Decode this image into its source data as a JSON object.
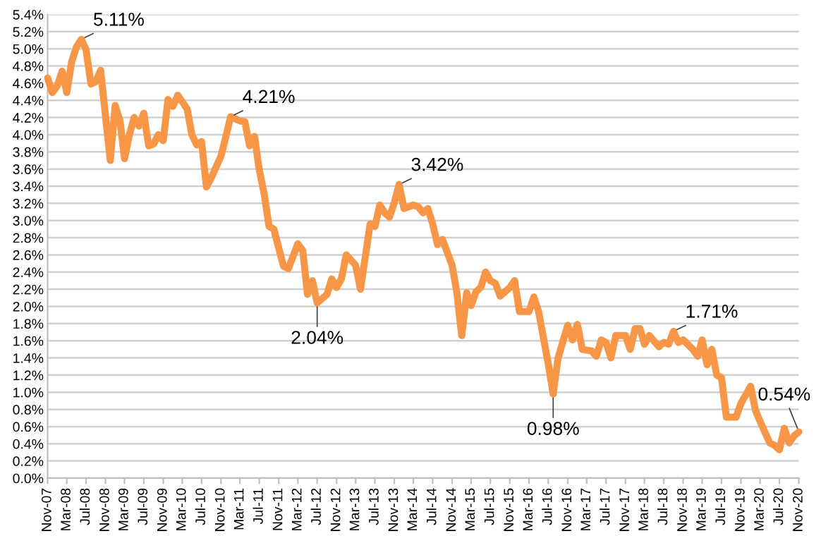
{
  "chart_data": {
    "type": "line",
    "x": [
      "2007-11",
      "2007-12",
      "2008-01",
      "2008-02",
      "2008-03",
      "2008-04",
      "2008-05",
      "2008-06",
      "2008-07",
      "2008-08",
      "2008-09",
      "2008-10",
      "2008-12",
      "2009-01",
      "2009-02",
      "2009-03",
      "2009-04",
      "2009-05",
      "2009-06",
      "2009-07",
      "2009-08",
      "2009-09",
      "2009-10",
      "2009-11",
      "2009-12",
      "2010-01",
      "2010-02",
      "2010-04",
      "2010-05",
      "2010-06",
      "2010-07",
      "2010-08",
      "2010-09",
      "2010-11",
      "2010-12",
      "2011-01",
      "2011-03",
      "2011-04",
      "2011-05",
      "2011-06",
      "2011-07",
      "2011-08",
      "2011-09",
      "2011-10",
      "2011-12",
      "2012-01",
      "2012-03",
      "2012-04",
      "2012-05",
      "2012-06",
      "2012-07",
      "2012-09",
      "2012-10",
      "2012-11",
      "2012-12",
      "2013-01",
      "2013-03",
      "2013-04",
      "2013-06",
      "2013-07",
      "2013-08",
      "2013-09",
      "2013-10",
      "2013-11",
      "2013-12",
      "2014-01",
      "2014-03",
      "2014-04",
      "2014-05",
      "2014-06",
      "2014-07",
      "2014-08",
      "2014-09",
      "2014-11",
      "2014-12",
      "2015-01",
      "2015-02",
      "2015-03",
      "2015-04",
      "2015-05",
      "2015-06",
      "2015-07",
      "2015-08",
      "2015-09",
      "2015-11",
      "2015-12",
      "2016-01",
      "2016-03",
      "2016-04",
      "2016-05",
      "2016-07",
      "2016-08",
      "2016-09",
      "2016-11",
      "2016-12",
      "2017-01",
      "2017-02",
      "2017-04",
      "2017-05",
      "2017-06",
      "2017-07",
      "2017-08",
      "2017-09",
      "2017-11",
      "2017-12",
      "2018-01",
      "2018-02",
      "2018-03",
      "2018-04",
      "2018-06",
      "2018-07",
      "2018-08",
      "2018-09",
      "2018-10",
      "2018-11",
      "2019-01",
      "2019-02",
      "2019-03",
      "2019-04",
      "2019-05",
      "2019-06",
      "2019-07",
      "2019-08",
      "2019-10",
      "2019-11",
      "2020-01",
      "2020-02",
      "2020-03",
      "2020-05",
      "2020-06",
      "2020-07",
      "2020-08",
      "2020-09",
      "2020-10",
      "2020-11"
    ],
    "series": [
      {
        "color": "#f79646",
        "values": [
          4.66,
          4.49,
          4.57,
          4.74,
          4.49,
          4.85,
          5.02,
          5.11,
          4.99,
          4.59,
          4.62,
          4.75,
          3.7,
          4.34,
          4.16,
          3.72,
          4.0,
          4.2,
          4.1,
          4.25,
          3.87,
          3.89,
          4.0,
          3.93,
          4.41,
          4.33,
          4.46,
          4.3,
          4.0,
          3.88,
          3.92,
          3.39,
          3.5,
          3.75,
          3.97,
          4.21,
          4.16,
          4.15,
          3.87,
          3.98,
          3.59,
          3.31,
          2.93,
          2.9,
          2.47,
          2.44,
          2.73,
          2.65,
          2.14,
          2.3,
          2.04,
          2.14,
          2.32,
          2.22,
          2.32,
          2.6,
          2.48,
          2.2,
          2.96,
          2.93,
          3.18,
          3.09,
          3.04,
          3.21,
          3.42,
          3.14,
          3.18,
          3.16,
          3.09,
          3.14,
          2.96,
          2.72,
          2.78,
          2.48,
          2.16,
          1.66,
          2.16,
          2.01,
          2.17,
          2.22,
          2.4,
          2.3,
          2.27,
          2.12,
          2.22,
          2.3,
          1.94,
          1.94,
          2.11,
          1.94,
          1.33,
          0.98,
          1.4,
          1.78,
          1.61,
          1.79,
          1.5,
          1.48,
          1.42,
          1.61,
          1.58,
          1.4,
          1.66,
          1.66,
          1.5,
          1.74,
          1.74,
          1.56,
          1.66,
          1.53,
          1.58,
          1.56,
          1.71,
          1.58,
          1.61,
          1.5,
          1.42,
          1.61,
          1.32,
          1.5,
          1.2,
          1.17,
          0.71,
          0.71,
          0.87,
          1.07,
          0.79,
          0.66,
          0.41,
          0.38,
          0.33,
          0.58,
          0.41,
          0.49,
          0.54
        ]
      }
    ],
    "annotations": [
      {
        "text": "5.11%",
        "x": "2008-06",
        "y": 5.11
      },
      {
        "text": "4.21%",
        "x": "2011-01",
        "y": 4.21
      },
      {
        "text": "2.04%",
        "x": "2012-07",
        "y": 2.04
      },
      {
        "text": "3.42%",
        "x": "2013-12",
        "y": 3.42
      },
      {
        "text": "0.98%",
        "x": "2016-08",
        "y": 0.98
      },
      {
        "text": "1.71%",
        "x": "2018-09",
        "y": 1.71
      },
      {
        "text": "0.54%",
        "x": "2020-11",
        "y": 0.54
      }
    ],
    "xlim": [
      "2007-11",
      "2020-11"
    ],
    "xticks": [
      {
        "value": "2007-11",
        "label": "Nov-07"
      },
      {
        "value": "2008-03",
        "label": "Mar-08"
      },
      {
        "value": "2008-07",
        "label": "Jul-08"
      },
      {
        "value": "2008-11",
        "label": "Nov-08"
      },
      {
        "value": "2009-03",
        "label": "Mar-09"
      },
      {
        "value": "2009-07",
        "label": "Jul-09"
      },
      {
        "value": "2009-11",
        "label": "Nov-09"
      },
      {
        "value": "2010-03",
        "label": "Mar-10"
      },
      {
        "value": "2010-07",
        "label": "Jul-10"
      },
      {
        "value": "2010-11",
        "label": "Nov-10"
      },
      {
        "value": "2011-03",
        "label": "Mar-11"
      },
      {
        "value": "2011-07",
        "label": "Jul-11"
      },
      {
        "value": "2011-11",
        "label": "Nov-11"
      },
      {
        "value": "2012-03",
        "label": "Mar-12"
      },
      {
        "value": "2012-07",
        "label": "Jul-12"
      },
      {
        "value": "2012-11",
        "label": "Nov-12"
      },
      {
        "value": "2013-03",
        "label": "Mar-13"
      },
      {
        "value": "2013-07",
        "label": "Jul-13"
      },
      {
        "value": "2013-11",
        "label": "Nov-13"
      },
      {
        "value": "2014-03",
        "label": "Mar-14"
      },
      {
        "value": "2014-07",
        "label": "Jul-14"
      },
      {
        "value": "2014-11",
        "label": "Nov-14"
      },
      {
        "value": "2015-03",
        "label": "Mar-15"
      },
      {
        "value": "2015-07",
        "label": "Jul-15"
      },
      {
        "value": "2015-11",
        "label": "Nov-15"
      },
      {
        "value": "2016-03",
        "label": "Mar-16"
      },
      {
        "value": "2016-07",
        "label": "Jul-16"
      },
      {
        "value": "2016-11",
        "label": "Nov-16"
      },
      {
        "value": "2017-03",
        "label": "Mar-17"
      },
      {
        "value": "2017-07",
        "label": "Jul-17"
      },
      {
        "value": "2017-11",
        "label": "Nov-17"
      },
      {
        "value": "2018-03",
        "label": "Mar-18"
      },
      {
        "value": "2018-07",
        "label": "Jul-18"
      },
      {
        "value": "2018-11",
        "label": "Nov-18"
      },
      {
        "value": "2019-03",
        "label": "Mar-19"
      },
      {
        "value": "2019-07",
        "label": "Jul-19"
      },
      {
        "value": "2019-11",
        "label": "Nov-19"
      },
      {
        "value": "2020-03",
        "label": "Mar-20"
      },
      {
        "value": "2020-07",
        "label": "Jul-20"
      },
      {
        "value": "2020-11",
        "label": "Nov-20"
      }
    ],
    "ylim": [
      0,
      5.4
    ],
    "yticks": [
      {
        "value": 0,
        "label": "0.0%"
      },
      {
        "value": 0.2,
        "label": "0.2%"
      },
      {
        "value": 0.4,
        "label": "0.4%"
      },
      {
        "value": 0.6,
        "label": "0.6%"
      },
      {
        "value": 0.8,
        "label": "0.8%"
      },
      {
        "value": 1.0,
        "label": "1.0%"
      },
      {
        "value": 1.2,
        "label": "1.2%"
      },
      {
        "value": 1.4,
        "label": "1.4%"
      },
      {
        "value": 1.6,
        "label": "1.6%"
      },
      {
        "value": 1.8,
        "label": "1.8%"
      },
      {
        "value": 2.0,
        "label": "2.0%"
      },
      {
        "value": 2.2,
        "label": "2.2%"
      },
      {
        "value": 2.4,
        "label": "2.4%"
      },
      {
        "value": 2.6,
        "label": "2.6%"
      },
      {
        "value": 2.8,
        "label": "2.8%"
      },
      {
        "value": 3.0,
        "label": "3.0%"
      },
      {
        "value": 3.2,
        "label": "3.2%"
      },
      {
        "value": 3.4,
        "label": "3.4%"
      },
      {
        "value": 3.6,
        "label": "3.6%"
      },
      {
        "value": 3.8,
        "label": "3.8%"
      },
      {
        "value": 4.0,
        "label": "4.0%"
      },
      {
        "value": 4.2,
        "label": "4.2%"
      },
      {
        "value": 4.4,
        "label": "4.4%"
      },
      {
        "value": 4.6,
        "label": "4.6%"
      },
      {
        "value": 4.8,
        "label": "4.8%"
      },
      {
        "value": 5.0,
        "label": "5.0%"
      },
      {
        "value": 5.2,
        "label": "5.2%"
      },
      {
        "value": 5.4,
        "label": "5.4%"
      }
    ],
    "grid": "y",
    "marker": "none",
    "line_style": "solid"
  }
}
